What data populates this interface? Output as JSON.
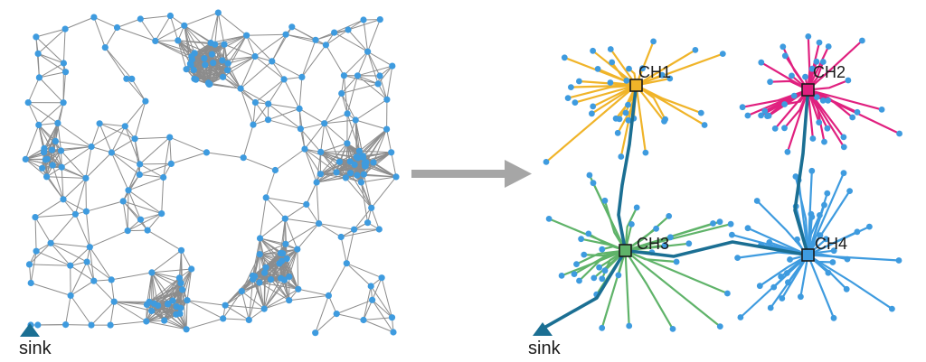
{
  "colors": {
    "node": "#3e9bdf",
    "left_edge": "#8c8c8c",
    "arrow": "#a6a6a6",
    "backbone": "#1b6f93",
    "sink": "#1b6f93",
    "cluster_ch1": "#f0b429",
    "cluster_ch2": "#e0207f",
    "cluster_ch3": "#5fb369",
    "cluster_ch4": "#3e9bdf"
  },
  "left_panel": {
    "sink_label": "sink"
  },
  "right_panel": {
    "sink_label": "sink",
    "cluster_heads": [
      {
        "id": "ch1",
        "label": "CH1"
      },
      {
        "id": "ch2",
        "label": "CH2"
      },
      {
        "id": "ch3",
        "label": "CH3"
      },
      {
        "id": "ch4",
        "label": "CH4"
      }
    ]
  },
  "transition_arrow_icon": "right-arrow-icon"
}
